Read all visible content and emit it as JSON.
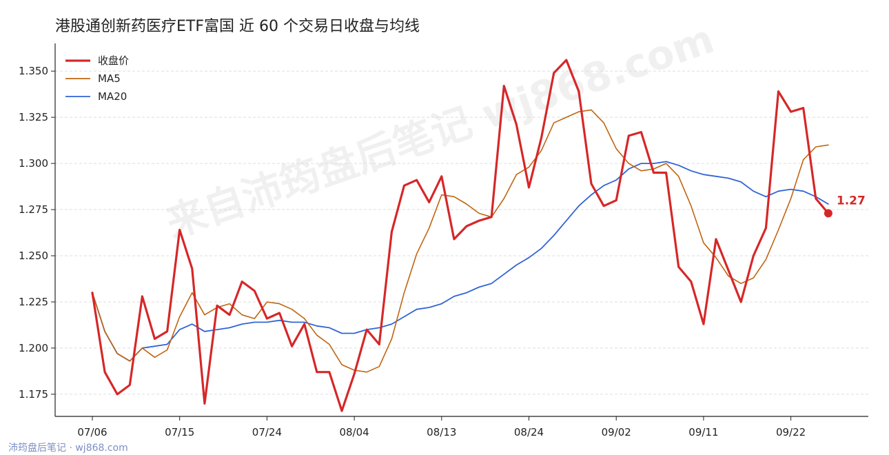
{
  "title": "港股通创新药医疗ETF富国 近 60 个交易日收盘与均线",
  "watermark": "来自沛筠盘后笔记 wj868.com",
  "footer": "沛筠盘后笔记 · wj868.com",
  "last_label": "1.27",
  "colors": {
    "close": "#d62728",
    "ma5": "#c0640f",
    "ma20": "#2f63d6",
    "grid": "#dddddd",
    "axis": "#222222"
  },
  "chart_data": {
    "type": "line",
    "xlabel": "",
    "ylabel": "",
    "ylim": [
      1.163,
      1.365
    ],
    "grid": "horizontal dashed",
    "legend": "top-left",
    "x_tick_labels": [
      "07/06",
      "07/15",
      "07/24",
      "08/04",
      "08/13",
      "08/24",
      "09/02",
      "09/11",
      "09/22"
    ],
    "x_tick_indices": [
      0,
      7,
      14,
      21,
      28,
      35,
      42,
      49,
      56
    ],
    "y_ticks": [
      1.175,
      1.2,
      1.225,
      1.25,
      1.275,
      1.3,
      1.325,
      1.35
    ],
    "y_tick_labels": [
      "1.175",
      "1.200",
      "1.225",
      "1.250",
      "1.275",
      "1.300",
      "1.325",
      "1.350"
    ],
    "series": [
      {
        "name": "收盘价",
        "values": [
          1.23,
          1.187,
          1.175,
          1.18,
          1.228,
          1.205,
          1.209,
          1.264,
          1.243,
          1.17,
          1.223,
          1.218,
          1.236,
          1.231,
          1.216,
          1.219,
          1.201,
          1.213,
          1.187,
          1.187,
          1.166,
          1.186,
          1.21,
          1.202,
          1.263,
          1.288,
          1.291,
          1.279,
          1.293,
          1.259,
          1.266,
          1.269,
          1.271,
          1.342,
          1.321,
          1.287,
          1.314,
          1.349,
          1.356,
          1.339,
          1.289,
          1.277,
          1.28,
          1.315,
          1.317,
          1.295,
          1.295,
          1.244,
          1.236,
          1.213,
          1.259,
          1.242,
          1.225,
          1.25,
          1.265,
          1.339,
          1.328,
          1.33,
          1.281,
          1.273
        ]
      },
      {
        "name": "MA5",
        "values": [
          1.23,
          1.209,
          1.197,
          1.193,
          1.2,
          1.195,
          1.199,
          1.217,
          1.23,
          1.218,
          1.222,
          1.224,
          1.218,
          1.216,
          1.225,
          1.224,
          1.221,
          1.216,
          1.207,
          1.202,
          1.191,
          1.188,
          1.187,
          1.19,
          1.205,
          1.23,
          1.251,
          1.265,
          1.283,
          1.282,
          1.278,
          1.273,
          1.271,
          1.281,
          1.294,
          1.298,
          1.307,
          1.322,
          1.325,
          1.328,
          1.329,
          1.322,
          1.308,
          1.3,
          1.296,
          1.297,
          1.3,
          1.293,
          1.277,
          1.257,
          1.249,
          1.239,
          1.235,
          1.238,
          1.248,
          1.264,
          1.281,
          1.302,
          1.309,
          1.31
        ]
      },
      {
        "name": "MA20",
        "values": [
          1.23,
          1.209,
          1.197,
          1.193,
          1.2,
          1.201,
          1.202,
          1.21,
          1.213,
          1.209,
          1.21,
          1.211,
          1.213,
          1.214,
          1.214,
          1.215,
          1.214,
          1.214,
          1.212,
          1.211,
          1.208,
          1.208,
          1.21,
          1.211,
          1.213,
          1.217,
          1.221,
          1.222,
          1.224,
          1.228,
          1.23,
          1.233,
          1.235,
          1.24,
          1.245,
          1.249,
          1.254,
          1.261,
          1.269,
          1.277,
          1.283,
          1.288,
          1.291,
          1.297,
          1.3,
          1.3,
          1.301,
          1.299,
          1.296,
          1.294,
          1.293,
          1.292,
          1.29,
          1.285,
          1.282,
          1.285,
          1.286,
          1.285,
          1.282,
          1.278
        ]
      }
    ]
  }
}
